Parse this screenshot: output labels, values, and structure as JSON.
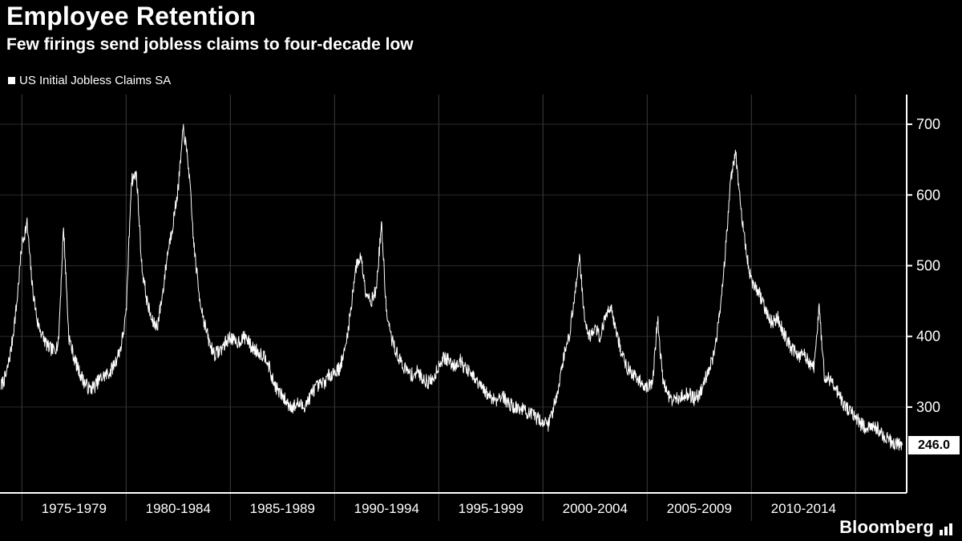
{
  "branding": {
    "logo_text": "Bloomberg"
  },
  "chart_data": {
    "type": "line",
    "title": "Employee Retention",
    "subtitle": "Few firings send jobless claims to four-decade low",
    "legend_position": "top-left",
    "grid": true,
    "xlim": [
      1973.95,
      2017.45
    ],
    "ylim": [
      182,
      742
    ],
    "y_ticks": [
      300,
      400,
      500,
      600,
      700
    ],
    "x_gridlines": [
      1975,
      1980,
      1985,
      1990,
      1995,
      2000,
      2005,
      2010,
      2015
    ],
    "x_tick_labels": [
      {
        "label": "1975-1979",
        "center": 1977.5
      },
      {
        "label": "1980-1984",
        "center": 1982.5
      },
      {
        "label": "1985-1989",
        "center": 1987.5
      },
      {
        "label": "1990-1994",
        "center": 1992.5
      },
      {
        "label": "1995-1999",
        "center": 1997.5
      },
      {
        "label": "2000-2004",
        "center": 2002.5
      },
      {
        "label": "2005-2009",
        "center": 2007.5
      },
      {
        "label": "2010-2014",
        "center": 2012.5
      }
    ],
    "series": [
      {
        "name": "US Initial Jobless Claims SA",
        "unit": "thousands",
        "x_start": 1974.0,
        "x_step": 0.25,
        "last_value": 246.0,
        "last_value_label": "246.0",
        "y": [
          330,
          345,
          385,
          445,
          530,
          560,
          470,
          420,
          400,
          385,
          380,
          390,
          555,
          400,
          370,
          350,
          335,
          325,
          330,
          340,
          345,
          350,
          365,
          385,
          430,
          620,
          630,
          500,
          450,
          420,
          415,
          460,
          520,
          560,
          610,
          695,
          640,
          530,
          460,
          420,
          390,
          375,
          380,
          390,
          400,
          390,
          395,
          400,
          385,
          380,
          375,
          370,
          340,
          325,
          315,
          305,
          300,
          305,
          300,
          310,
          325,
          330,
          335,
          345,
          350,
          355,
          380,
          430,
          495,
          515,
          465,
          450,
          465,
          560,
          430,
          395,
          375,
          360,
          350,
          345,
          350,
          340,
          335,
          340,
          360,
          370,
          365,
          358,
          368,
          355,
          348,
          338,
          330,
          320,
          315,
          310,
          318,
          308,
          302,
          298,
          298,
          292,
          288,
          284,
          280,
          275,
          298,
          330,
          372,
          400,
          450,
          517,
          420,
          400,
          412,
          400,
          428,
          445,
          408,
          378,
          358,
          348,
          340,
          335,
          328,
          332,
          425,
          338,
          318,
          308,
          312,
          318,
          318,
          312,
          318,
          338,
          358,
          378,
          440,
          520,
          620,
          660,
          575,
          520,
          478,
          468,
          452,
          432,
          418,
          428,
          408,
          392,
          380,
          372,
          376,
          364,
          355,
          440,
          345,
          340,
          330,
          315,
          300,
          292,
          288,
          276,
          270,
          268,
          272,
          262,
          256,
          250,
          248,
          246
        ]
      }
    ],
    "colors": {
      "line": "#ffffff",
      "grid_vertical": "#3c3c3c",
      "grid_horizontal": "#2a2a2a",
      "axis": "#ffffff",
      "background": "#000000",
      "text": "#ffffff",
      "value_tag_bg": "#ffffff",
      "value_tag_text": "#000000"
    }
  }
}
